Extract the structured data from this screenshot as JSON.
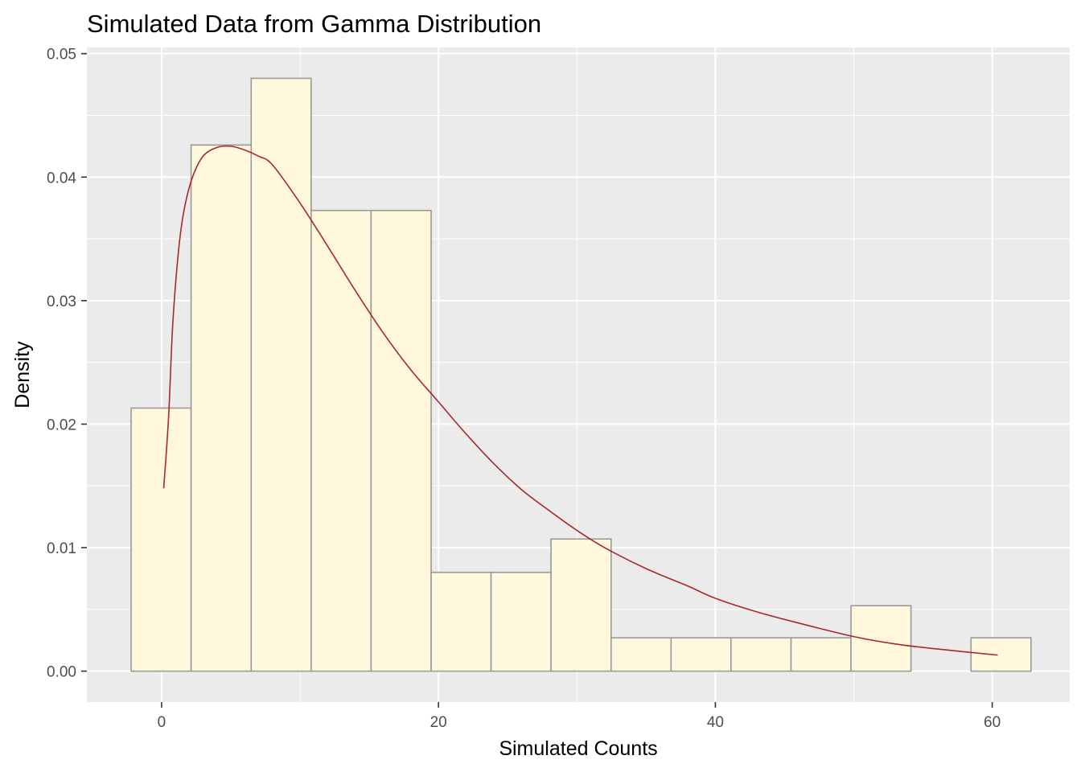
{
  "chart_data": {
    "type": "histogram",
    "title": "Simulated Data from Gamma Distribution",
    "xlabel": "Simulated Counts",
    "ylabel": "Density",
    "xlim": [
      -5.4,
      65.6
    ],
    "ylim": [
      -0.0025,
      0.0505
    ],
    "x_ticks": [
      0,
      20,
      40,
      60
    ],
    "x_tick_labels": [
      "0",
      "20",
      "40",
      "60"
    ],
    "y_ticks": [
      0.0,
      0.01,
      0.02,
      0.03,
      0.04,
      0.05
    ],
    "y_tick_labels": [
      "0.00",
      "0.01",
      "0.02",
      "0.03",
      "0.04",
      "0.05"
    ],
    "grid": true,
    "bin_edges": [
      -2.2,
      2.13,
      6.47,
      10.8,
      15.13,
      19.47,
      23.8,
      28.13,
      32.47,
      36.8,
      41.13,
      45.47,
      49.8,
      54.13,
      58.47,
      62.8
    ],
    "density": [
      0.0213,
      0.0426,
      0.048,
      0.0373,
      0.0373,
      0.008,
      0.008,
      0.0107,
      0.0027,
      0.0027,
      0.0027,
      0.0027,
      0.0053,
      0.0,
      0.0027
    ],
    "curve": {
      "type": "line",
      "color": "#a52a2a",
      "x": [
        0.15,
        0.5,
        0.8,
        1.2,
        1.6,
        2.2,
        3,
        4,
        5,
        6,
        7,
        8,
        10,
        12,
        14,
        16,
        18,
        20,
        22,
        24,
        26,
        28,
        30,
        32,
        35,
        38,
        40,
        43,
        46,
        50,
        53,
        56,
        60.4
      ],
      "y": [
        0.0148,
        0.0205,
        0.028,
        0.0338,
        0.0372,
        0.0399,
        0.0417,
        0.0424,
        0.0425,
        0.0422,
        0.0417,
        0.041,
        0.0379,
        0.0344,
        0.0308,
        0.0274,
        0.0244,
        0.0218,
        0.0192,
        0.0168,
        0.0147,
        0.013,
        0.0114,
        0.01,
        0.0083,
        0.0069,
        0.0059,
        0.0048,
        0.0039,
        0.0028,
        0.0022,
        0.0018,
        0.0013
      ]
    },
    "colors": {
      "panel_background": "#ebebeb",
      "grid_major": "#ffffff",
      "bar_fill": "#fff8dc",
      "bar_stroke": "#999999",
      "curve": "#a52a2a",
      "tick": "#333333"
    }
  }
}
